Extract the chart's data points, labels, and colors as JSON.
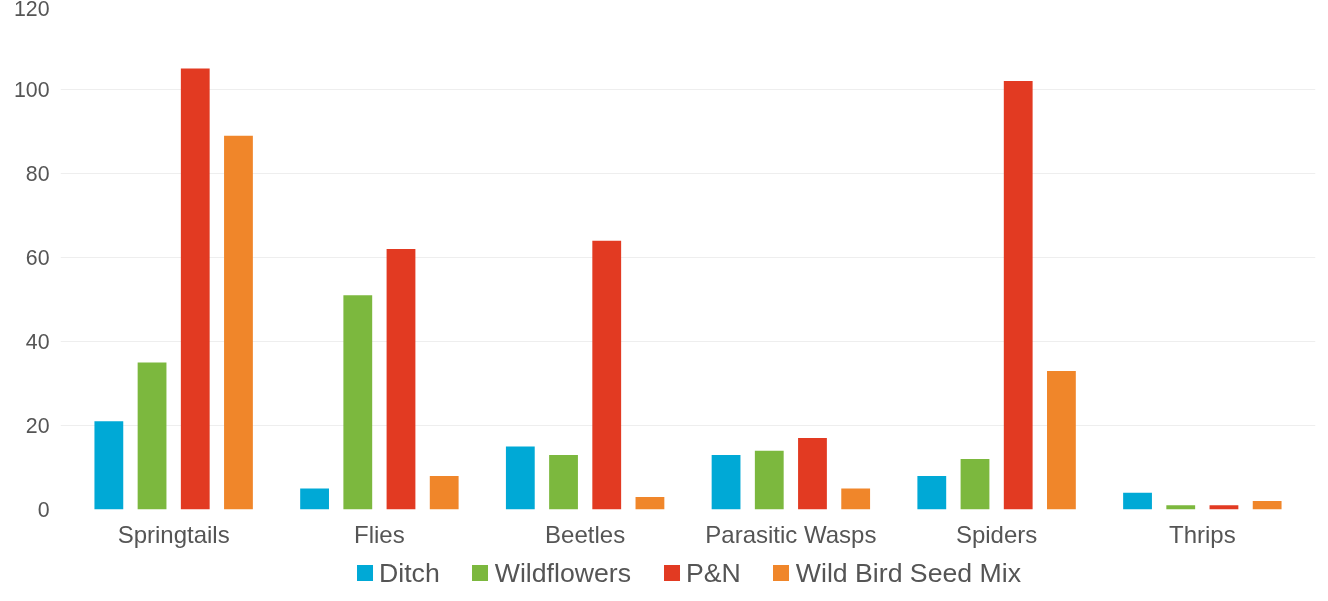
{
  "chart_data": {
    "type": "bar",
    "categories": [
      "Springtails",
      "Flies",
      "Beetles",
      "Parasitic Wasps",
      "Spiders",
      "Thrips"
    ],
    "series": [
      {
        "name": "Ditch",
        "color": "#00a9d6",
        "values": [
          21,
          5,
          15,
          13,
          8,
          4
        ]
      },
      {
        "name": "Wildflowers",
        "color": "#7cb83e",
        "values": [
          35,
          51,
          13,
          14,
          12,
          1
        ]
      },
      {
        "name": "P&N",
        "color": "#e23a22",
        "values": [
          105,
          62,
          64,
          17,
          102,
          1
        ]
      },
      {
        "name": "Wild Bird Seed Mix",
        "color": "#f0862a",
        "values": [
          89,
          8,
          3,
          5,
          33,
          2
        ]
      }
    ],
    "ylim": [
      0,
      120
    ],
    "yticks": [
      0,
      20,
      40,
      60,
      80,
      100,
      120
    ],
    "grid": "y",
    "legend": "bottom"
  }
}
